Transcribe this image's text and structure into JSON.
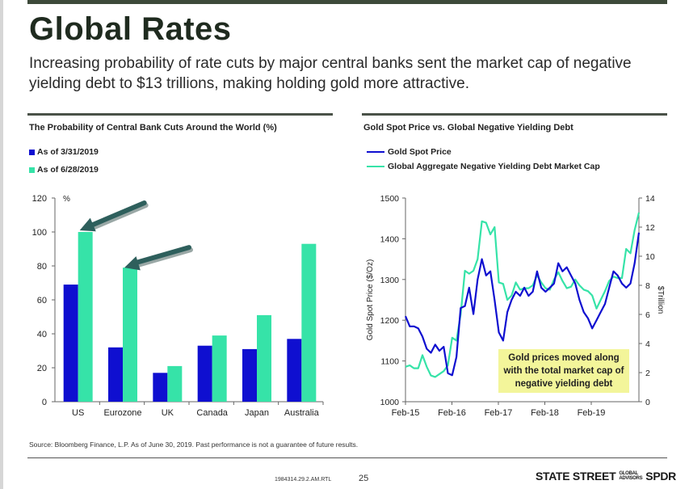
{
  "header": {
    "title": "Global Rates",
    "subtitle": "Increasing probability of rate cuts by major central banks sent the market cap of negative yielding debt to $13 trillions, making holding gold more attractive."
  },
  "colors": {
    "primary_blue": "#0f0fd0",
    "teal": "#36e3a8",
    "arrow": "#2e5f5c",
    "annotation_bg": "#f3f59a",
    "dark_green": "#3d4a3a"
  },
  "chart_data": [
    {
      "type": "bar",
      "title": "The Probability of Central Bank Cuts Around the World (%)",
      "ylabel": "%",
      "ylim": [
        0,
        120
      ],
      "yticks": [
        "0",
        "20",
        "40",
        "60",
        "80",
        "100",
        "120"
      ],
      "categories": [
        "US",
        "Eurozone",
        "UK",
        "Canada",
        "Japan",
        "Australia"
      ],
      "series": [
        {
          "name": "As of 3/31/2019",
          "color": "#0f0fd0",
          "values": [
            69,
            32,
            17,
            33,
            31,
            37
          ]
        },
        {
          "name": "As of 6/28/2019",
          "color": "#36e3a8",
          "values": [
            100,
            79,
            21,
            39,
            51,
            93
          ]
        }
      ],
      "legend": "top-left",
      "annotations": [
        "arrow-to-US",
        "arrow-to-Eurozone"
      ]
    },
    {
      "type": "line",
      "title": "Gold Spot Price vs. Global Negative Yielding Debt",
      "xlabels": [
        "Feb-15",
        "Feb-16",
        "Feb-17",
        "Feb-18",
        "Feb-19"
      ],
      "ylabel_left": "Gold Spot Price ($/Oz)",
      "ylabel_right": "$Trillion",
      "ylim_left": [
        1000,
        1500
      ],
      "ylim_right": [
        0,
        14
      ],
      "yticks_left": [
        "1000",
        "1100",
        "1200",
        "1300",
        "1400",
        "1500"
      ],
      "yticks_right": [
        "0",
        "2",
        "4",
        "6",
        "8",
        "10",
        "12",
        "14"
      ],
      "series": [
        {
          "name": "Gold Spot Price",
          "axis": "left",
          "color": "#0f0fd0",
          "values": [
            1210,
            1185,
            1185,
            1180,
            1160,
            1130,
            1120,
            1140,
            1125,
            1135,
            1070,
            1065,
            1110,
            1230,
            1235,
            1280,
            1215,
            1300,
            1350,
            1310,
            1320,
            1250,
            1170,
            1150,
            1220,
            1250,
            1270,
            1260,
            1280,
            1260,
            1270,
            1320,
            1280,
            1270,
            1280,
            1290,
            1340,
            1320,
            1330,
            1310,
            1290,
            1250,
            1220,
            1205,
            1180,
            1200,
            1220,
            1240,
            1280,
            1320,
            1310,
            1290,
            1280,
            1290,
            1340,
            1415
          ]
        },
        {
          "name": "Global Aggregate Negative Yielding Debt Market Cap",
          "axis": "right",
          "color": "#36e3a8",
          "values": [
            2.4,
            2.5,
            2.3,
            2.3,
            3.2,
            2.4,
            1.8,
            1.7,
            1.9,
            2.1,
            2.5,
            4.4,
            4.2,
            6.0,
            9.0,
            8.8,
            9.0,
            9.8,
            12.4,
            12.3,
            11.5,
            12.0,
            8.2,
            8.1,
            7.0,
            7.3,
            8.2,
            7.7,
            7.8,
            7.8,
            8.0,
            8.7,
            8.2,
            7.8,
            7.7,
            8.4,
            8.9,
            8.3,
            7.8,
            7.9,
            8.4,
            8.0,
            7.7,
            7.6,
            7.3,
            6.4,
            7.0,
            7.6,
            8.3,
            8.6,
            8.5,
            8.5,
            10.5,
            10.2,
            11.8,
            13.0
          ]
        }
      ],
      "annotation": "Gold prices moved along with the total market cap of negative yielding debt",
      "legend": "top-left"
    }
  ],
  "footer": {
    "source": "Source: Bloomberg Finance, L.P. As of June 30, 2019. Past performance is not a guarantee of future results.",
    "code": "1984314.29.2.AM.RTL",
    "page": "25",
    "logo_main": "STATE STREET",
    "logo_small_1": "GLOBAL",
    "logo_small_2": "ADVISORS",
    "logo_brand": "SPDR"
  }
}
